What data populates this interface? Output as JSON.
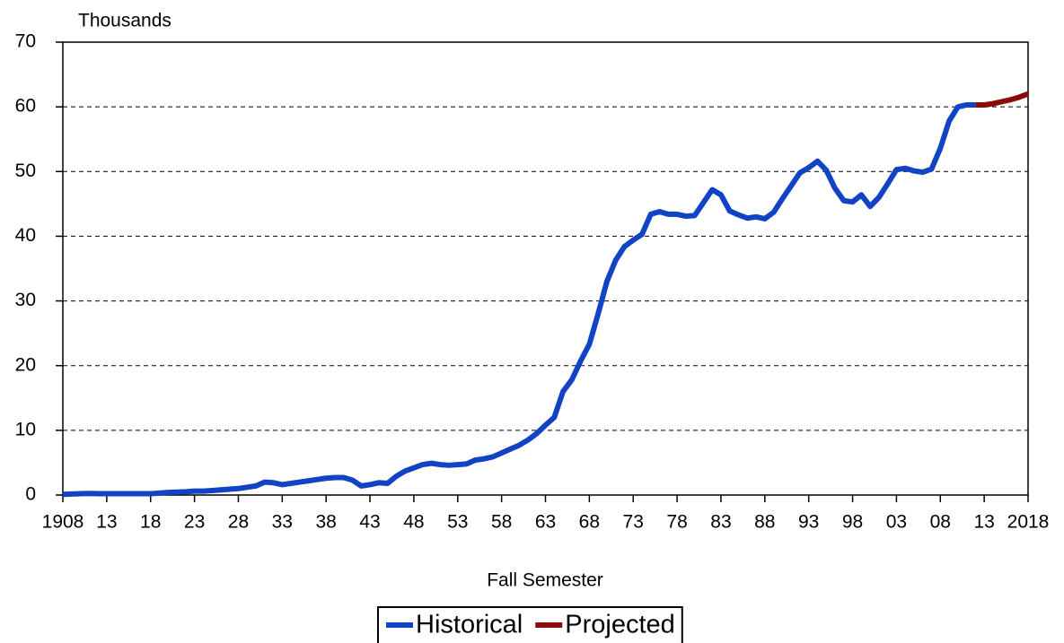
{
  "chart_data": {
    "type": "line",
    "y_label": "Thousands",
    "x_label": "Fall Semester",
    "x": [
      1908,
      1909,
      1910,
      1911,
      1912,
      1913,
      1914,
      1915,
      1916,
      1917,
      1918,
      1919,
      1920,
      1921,
      1922,
      1923,
      1924,
      1925,
      1926,
      1927,
      1928,
      1929,
      1930,
      1931,
      1932,
      1933,
      1934,
      1935,
      1936,
      1937,
      1938,
      1939,
      1940,
      1941,
      1942,
      1943,
      1944,
      1945,
      1946,
      1947,
      1948,
      1949,
      1950,
      1951,
      1952,
      1953,
      1954,
      1955,
      1956,
      1957,
      1958,
      1959,
      1960,
      1961,
      1962,
      1963,
      1964,
      1965,
      1966,
      1967,
      1968,
      1969,
      1970,
      1971,
      1972,
      1973,
      1974,
      1975,
      1976,
      1977,
      1978,
      1979,
      1980,
      1981,
      1982,
      1983,
      1984,
      1985,
      1986,
      1987,
      1988,
      1989,
      1990,
      1991,
      1992,
      1993,
      1994,
      1995,
      1996,
      1997,
      1998,
      1999,
      2000,
      2001,
      2002,
      2003,
      2004,
      2005,
      2006,
      2007,
      2008,
      2009,
      2010,
      2011,
      2012,
      2013,
      2014,
      2015,
      2016,
      2017,
      2018
    ],
    "series": [
      {
        "name": "Historical",
        "color": "#1144c4",
        "values": [
          0.1,
          0.15,
          0.2,
          0.25,
          0.2,
          0.2,
          0.2,
          0.2,
          0.2,
          0.2,
          0.2,
          0.3,
          0.4,
          0.45,
          0.5,
          0.6,
          0.6,
          0.7,
          0.8,
          0.9,
          1.0,
          1.2,
          1.4,
          2.0,
          1.9,
          1.6,
          1.8,
          2.0,
          2.2,
          2.4,
          2.6,
          2.7,
          2.7,
          2.3,
          1.4,
          1.6,
          1.9,
          1.8,
          2.9,
          3.7,
          4.2,
          4.7,
          4.9,
          4.7,
          4.6,
          4.7,
          4.8,
          5.4,
          5.6,
          5.9,
          6.5,
          7.1,
          7.7,
          8.5,
          9.5,
          10.8,
          12.0,
          16.0,
          17.8,
          20.7,
          23.3,
          28.0,
          33.0,
          36.3,
          38.4,
          39.4,
          40.3,
          43.4,
          43.8,
          43.4,
          43.4,
          43.1,
          43.2,
          45.2,
          47.2,
          46.4,
          43.9,
          43.3,
          42.8,
          43.0,
          42.7,
          43.7,
          45.8,
          47.8,
          49.8,
          50.6,
          51.6,
          50.2,
          47.4,
          45.5,
          45.3,
          46.4,
          44.6,
          46.0,
          48.1,
          50.3,
          50.5,
          50.1,
          49.9,
          50.4,
          53.6,
          57.8,
          60.0,
          60.3,
          60.3,
          null,
          null,
          null,
          null,
          null,
          null
        ]
      },
      {
        "name": "Projected",
        "color": "#8b0a0a",
        "values": [
          null,
          null,
          null,
          null,
          null,
          null,
          null,
          null,
          null,
          null,
          null,
          null,
          null,
          null,
          null,
          null,
          null,
          null,
          null,
          null,
          null,
          null,
          null,
          null,
          null,
          null,
          null,
          null,
          null,
          null,
          null,
          null,
          null,
          null,
          null,
          null,
          null,
          null,
          null,
          null,
          null,
          null,
          null,
          null,
          null,
          null,
          null,
          null,
          null,
          null,
          null,
          null,
          null,
          null,
          null,
          null,
          null,
          null,
          null,
          null,
          null,
          null,
          null,
          null,
          null,
          null,
          null,
          null,
          null,
          null,
          null,
          null,
          null,
          null,
          null,
          null,
          null,
          null,
          null,
          null,
          null,
          null,
          null,
          null,
          null,
          null,
          null,
          null,
          null,
          null,
          null,
          null,
          null,
          null,
          null,
          null,
          null,
          null,
          null,
          null,
          null,
          null,
          null,
          null,
          60.3,
          60.3,
          60.5,
          60.8,
          61.1,
          61.5,
          62.0
        ]
      }
    ],
    "xlim": [
      1908,
      2018
    ],
    "xticks": [
      1908,
      {
        "value": 1913,
        "label": "13"
      },
      {
        "value": 1918,
        "label": "18"
      },
      {
        "value": 1923,
        "label": "23"
      },
      {
        "value": 1928,
        "label": "28"
      },
      {
        "value": 1933,
        "label": "33"
      },
      {
        "value": 1938,
        "label": "38"
      },
      {
        "value": 1943,
        "label": "43"
      },
      {
        "value": 1948,
        "label": "48"
      },
      {
        "value": 1953,
        "label": "53"
      },
      {
        "value": 1958,
        "label": "58"
      },
      {
        "value": 1963,
        "label": "63"
      },
      {
        "value": 1968,
        "label": "68"
      },
      {
        "value": 1973,
        "label": "73"
      },
      {
        "value": 1978,
        "label": "78"
      },
      {
        "value": 1983,
        "label": "83"
      },
      {
        "value": 1988,
        "label": "88"
      },
      {
        "value": 1993,
        "label": "93"
      },
      {
        "value": 1998,
        "label": "98"
      },
      {
        "value": 2003,
        "label": "03"
      },
      {
        "value": 2008,
        "label": "08"
      },
      {
        "value": 2013,
        "label": "13"
      },
      2018
    ],
    "ylim": [
      0,
      70
    ],
    "yticks": [
      0,
      10,
      20,
      30,
      40,
      50,
      60,
      70
    ],
    "grid": true,
    "legend": "bottom"
  }
}
